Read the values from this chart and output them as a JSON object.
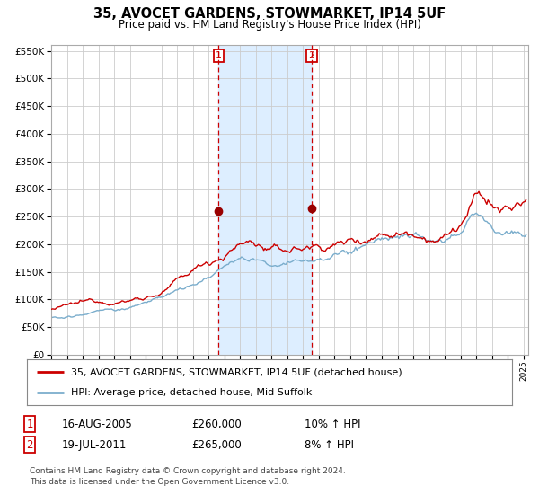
{
  "title": "35, AVOCET GARDENS, STOWMARKET, IP14 5UF",
  "subtitle": "Price paid vs. HM Land Registry's House Price Index (HPI)",
  "sale1_date_str": "16-AUG-2005",
  "sale1_year": 2005,
  "sale1_month": 8,
  "sale1_day": 16,
  "sale1_price": 260000,
  "sale2_date_str": "19-JUL-2011",
  "sale2_year": 2011,
  "sale2_month": 7,
  "sale2_day": 19,
  "sale2_price": 265000,
  "sale1_pct": "10%",
  "sale2_pct": "8%",
  "y_ticks": [
    0,
    50000,
    100000,
    150000,
    200000,
    250000,
    300000,
    350000,
    400000,
    450000,
    500000,
    550000
  ],
  "red_color": "#cc0000",
  "blue_color": "#7aadcc",
  "shade_color": "#ddeeff",
  "grid_color": "#cccccc",
  "bg_color": "#ffffff",
  "legend_line1": "35, AVOCET GARDENS, STOWMARKET, IP14 5UF (detached house)",
  "legend_line2": "HPI: Average price, detached house, Mid Suffolk",
  "footnote1": "Contains HM Land Registry data © Crown copyright and database right 2024.",
  "footnote2": "This data is licensed under the Open Government Licence v3.0."
}
